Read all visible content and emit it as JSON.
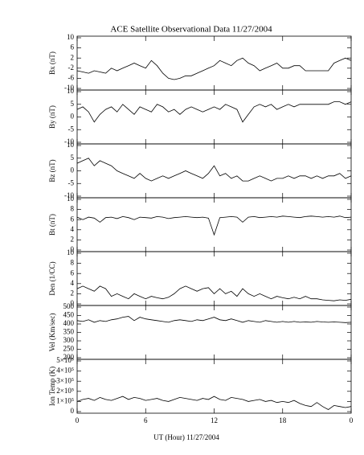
{
  "title": "ACE Satellite Observational Data   11/27/2004",
  "x_label": "UT (Hour)   11/27/2004",
  "chart_data": [
    {
      "type": "line",
      "y_label": "Bx (nT)",
      "color": "#000000",
      "x": [
        0,
        0.5,
        1,
        1.5,
        2,
        2.5,
        3,
        3.5,
        4,
        4.5,
        5,
        5.5,
        6,
        6.5,
        7,
        7.5,
        8,
        8.5,
        9,
        9.5,
        10,
        10.5,
        11,
        11.5,
        12,
        12.5,
        13,
        13.5,
        14,
        14.5,
        15,
        15.5,
        16,
        16.5,
        17,
        17.5,
        18,
        18.5,
        19,
        19.5,
        20,
        20.5,
        21,
        21.5,
        22,
        22.5,
        23,
        23.5,
        24
      ],
      "values": [
        -3,
        -3.5,
        -4,
        -3,
        -3.5,
        -4,
        -2,
        -3,
        -2,
        -1,
        0,
        -1,
        -2,
        1,
        -1,
        -4,
        -6,
        -6.5,
        -6,
        -5,
        -5,
        -4,
        -3,
        -2,
        -1,
        1,
        0,
        -1,
        1,
        2,
        0,
        -1,
        -3,
        -2,
        -1,
        0,
        -2,
        -2,
        -1,
        -1,
        -3,
        -3,
        -3,
        -3,
        -3,
        0,
        1,
        2,
        1
      ],
      "xlim": [
        0,
        24
      ],
      "xticks": [
        0,
        6,
        12,
        18,
        {
          "value": 24,
          "label": "0"
        }
      ],
      "ylim": [
        -10,
        10
      ],
      "yticks": [
        -10,
        -6,
        -2,
        2,
        6,
        10
      ]
    },
    {
      "type": "line",
      "y_label": "By (nT)",
      "color": "#000000",
      "x": [
        0,
        0.5,
        1,
        1.5,
        2,
        2.5,
        3,
        3.5,
        4,
        4.5,
        5,
        5.5,
        6,
        6.5,
        7,
        7.5,
        8,
        8.5,
        9,
        9.5,
        10,
        10.5,
        11,
        11.5,
        12,
        12.5,
        13,
        13.5,
        14,
        14.5,
        15,
        15.5,
        16,
        16.5,
        17,
        17.5,
        18,
        18.5,
        19,
        19.5,
        20,
        20.5,
        21,
        21.5,
        22,
        22.5,
        23,
        23.5,
        24
      ],
      "values": [
        3,
        4,
        2,
        -2,
        1,
        3,
        4,
        2,
        5,
        3,
        1,
        4,
        3,
        2,
        5,
        4,
        2,
        3,
        1,
        3,
        4,
        3,
        2,
        3,
        4,
        3,
        5,
        4,
        3,
        -2,
        1,
        4,
        5,
        4,
        5,
        3,
        4,
        5,
        4,
        5,
        5,
        5,
        5,
        5,
        5,
        6,
        6,
        5,
        6
      ],
      "xlim": [
        0,
        24
      ],
      "xticks": [
        0,
        6,
        12,
        18,
        {
          "value": 24,
          "label": "0"
        }
      ],
      "ylim": [
        -10,
        10
      ],
      "yticks": [
        -10,
        -5,
        0,
        5,
        10
      ]
    },
    {
      "type": "line",
      "y_label": "Bz (nT)",
      "color": "#000000",
      "x": [
        0,
        0.5,
        1,
        1.5,
        2,
        2.5,
        3,
        3.5,
        4,
        4.5,
        5,
        5.5,
        6,
        6.5,
        7,
        7.5,
        8,
        8.5,
        9,
        9.5,
        10,
        10.5,
        11,
        11.5,
        12,
        12.5,
        13,
        13.5,
        14,
        14.5,
        15,
        15.5,
        16,
        16.5,
        17,
        17.5,
        18,
        18.5,
        19,
        19.5,
        20,
        20.5,
        21,
        21.5,
        22,
        22.5,
        23,
        23.5,
        24
      ],
      "values": [
        3,
        4,
        5,
        2,
        4,
        3,
        2,
        0,
        -1,
        -2,
        -3,
        -1,
        -3,
        -4,
        -3,
        -2,
        -3,
        -2,
        -1,
        0,
        -1,
        -2,
        -3,
        -1,
        2,
        -2,
        -1,
        -3,
        -2,
        -4,
        -4,
        -3,
        -2,
        -3,
        -4,
        -3,
        -3,
        -2,
        -3,
        -2,
        -2,
        -3,
        -2,
        -3,
        -2,
        -2,
        -1,
        -3,
        -2
      ],
      "xlim": [
        0,
        24
      ],
      "xticks": [
        0,
        6,
        12,
        18,
        {
          "value": 24,
          "label": "0"
        }
      ],
      "ylim": [
        -10,
        10
      ],
      "yticks": [
        -10,
        -5,
        0,
        5,
        10
      ]
    },
    {
      "type": "line",
      "y_label": "Bt (nT)",
      "color": "#000000",
      "x": [
        0,
        0.5,
        1,
        1.5,
        2,
        2.5,
        3,
        3.5,
        4,
        4.5,
        5,
        5.5,
        6,
        6.5,
        7,
        7.5,
        8,
        8.5,
        9,
        9.5,
        10,
        10.5,
        11,
        11.5,
        12,
        12.5,
        13,
        13.5,
        14,
        14.5,
        15,
        15.5,
        16,
        16.5,
        17,
        17.5,
        18,
        18.5,
        19,
        19.5,
        20,
        20.5,
        21,
        21.5,
        22,
        22.5,
        23,
        23.5,
        24
      ],
      "values": [
        6.5,
        6,
        6.5,
        6.3,
        5.5,
        6.4,
        6.5,
        6.2,
        6.6,
        6.4,
        6,
        6.5,
        6.4,
        6.3,
        6.6,
        6.5,
        6.2,
        6.4,
        6.5,
        6.6,
        6.5,
        6.4,
        6.5,
        6.3,
        3,
        6.4,
        6.5,
        6.6,
        6.5,
        5.5,
        6.5,
        6.6,
        6.4,
        6.5,
        6.6,
        6.5,
        6.7,
        6.6,
        6.5,
        6.4,
        6.6,
        6.7,
        6.6,
        6.5,
        6.6,
        6.5,
        6.7,
        6.4,
        6.5
      ],
      "xlim": [
        0,
        24
      ],
      "xticks": [
        0,
        6,
        12,
        18,
        {
          "value": 24,
          "label": "0"
        }
      ],
      "ylim": [
        0,
        10
      ],
      "yticks": [
        0,
        2,
        4,
        6,
        8,
        10
      ]
    },
    {
      "type": "line",
      "y_label": "Den (1/CC)",
      "color": "#000000",
      "x": [
        0,
        0.5,
        1,
        1.5,
        2,
        2.5,
        3,
        3.5,
        4,
        4.5,
        5,
        5.5,
        6,
        6.5,
        7,
        7.5,
        8,
        8.5,
        9,
        9.5,
        10,
        10.5,
        11,
        11.5,
        12,
        12.5,
        13,
        13.5,
        14,
        14.5,
        15,
        15.5,
        16,
        16.5,
        17,
        17.5,
        18,
        18.5,
        19,
        19.5,
        20,
        20.5,
        21,
        21.5,
        22,
        22.5,
        23,
        23.5,
        24
      ],
      "values": [
        3,
        3.5,
        3,
        2.5,
        3.5,
        3,
        1.5,
        2,
        1.5,
        1,
        2,
        1.5,
        1,
        1.5,
        1.2,
        1,
        1.3,
        2,
        3,
        3.5,
        3,
        2.5,
        3,
        3.2,
        2,
        3,
        2,
        2.5,
        1.5,
        3,
        2,
        1.5,
        2,
        1.5,
        1,
        1.5,
        1.2,
        1,
        1.3,
        1,
        1.5,
        1,
        1,
        0.8,
        0.7,
        0.6,
        0.8,
        0.7,
        0.9
      ],
      "xlim": [
        0,
        24
      ],
      "xticks": [
        0,
        6,
        12,
        18,
        {
          "value": 24,
          "label": "0"
        }
      ],
      "ylim": [
        0,
        10
      ],
      "yticks": [
        0,
        2,
        4,
        6,
        8,
        10
      ]
    },
    {
      "type": "line",
      "y_label": "Vel (Km/sec)",
      "color": "#000000",
      "x": [
        0,
        0.5,
        1,
        1.5,
        2,
        2.5,
        3,
        3.5,
        4,
        4.5,
        5,
        5.5,
        6,
        6.5,
        7,
        7.5,
        8,
        8.5,
        9,
        9.5,
        10,
        10.5,
        11,
        11.5,
        12,
        12.5,
        13,
        13.5,
        14,
        14.5,
        15,
        15.5,
        16,
        16.5,
        17,
        17.5,
        18,
        18.5,
        19,
        19.5,
        20,
        20.5,
        21,
        21.5,
        22,
        22.5,
        23,
        23.5,
        24
      ],
      "values": [
        420,
        415,
        425,
        410,
        420,
        415,
        425,
        430,
        440,
        445,
        420,
        440,
        430,
        425,
        420,
        415,
        410,
        420,
        425,
        420,
        415,
        425,
        420,
        430,
        440,
        425,
        420,
        430,
        420,
        410,
        420,
        415,
        410,
        420,
        415,
        410,
        415,
        410,
        415,
        410,
        412,
        410,
        415,
        412,
        410,
        412,
        410,
        408,
        410
      ],
      "xlim": [
        0,
        24
      ],
      "xticks": [
        0,
        6,
        12,
        18,
        {
          "value": 24,
          "label": "0"
        }
      ],
      "ylim": [
        200,
        500
      ],
      "yticks": [
        200,
        250,
        300,
        350,
        400,
        450,
        500
      ]
    },
    {
      "type": "line",
      "y_label": "Ion Temp (K)",
      "color": "#000000",
      "x": [
        0,
        0.5,
        1,
        1.5,
        2,
        2.5,
        3,
        3.5,
        4,
        4.5,
        5,
        5.5,
        6,
        6.5,
        7,
        7.5,
        8,
        8.5,
        9,
        9.5,
        10,
        10.5,
        11,
        11.5,
        12,
        12.5,
        13,
        13.5,
        14,
        14.5,
        15,
        15.5,
        16,
        16.5,
        17,
        17.5,
        18,
        18.5,
        19,
        19.5,
        20,
        20.5,
        21,
        21.5,
        22,
        22.5,
        23,
        23.5,
        24
      ],
      "values": [
        100000,
        120000,
        130000,
        110000,
        140000,
        120000,
        110000,
        130000,
        150000,
        120000,
        140000,
        130000,
        110000,
        120000,
        130000,
        110000,
        100000,
        120000,
        140000,
        130000,
        120000,
        110000,
        130000,
        120000,
        150000,
        120000,
        110000,
        140000,
        130000,
        120000,
        100000,
        110000,
        120000,
        100000,
        110000,
        90000,
        100000,
        90000,
        110000,
        80000,
        60000,
        50000,
        90000,
        50000,
        20000,
        60000,
        50000,
        40000,
        50000
      ],
      "xlim": [
        0,
        24
      ],
      "xticks": [
        0,
        6,
        12,
        18,
        {
          "value": 24,
          "label": "0"
        }
      ],
      "ylim": [
        0,
        500000
      ],
      "yticks": [
        0,
        {
          "value": 100000,
          "label": "1×10⁵"
        },
        {
          "value": 200000,
          "label": "2×10⁵"
        },
        {
          "value": 300000,
          "label": "3×10⁵"
        },
        {
          "value": 400000,
          "label": "4×10⁵"
        },
        {
          "value": 500000,
          "label": "5×10⁵"
        }
      ]
    }
  ]
}
